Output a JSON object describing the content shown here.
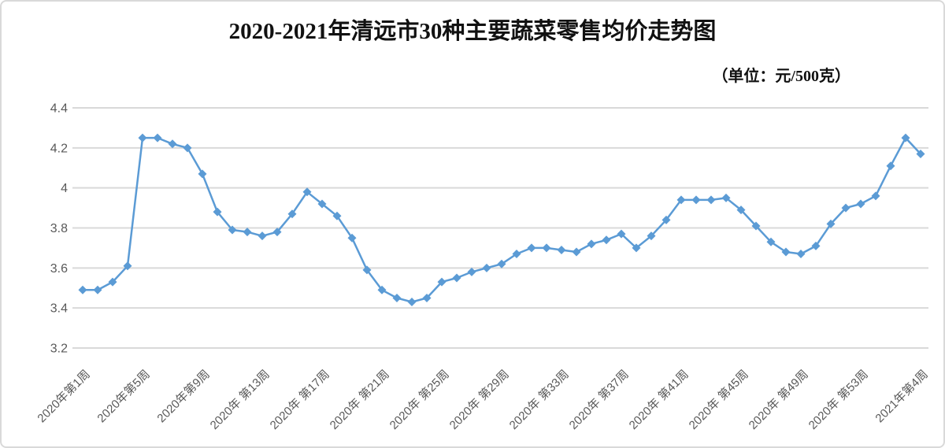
{
  "header": {
    "title": "2020-2021年清远市30种主要蔬菜零售均价走势图",
    "unit_label": "（单位：元/500克）"
  },
  "colors": {
    "line": "#5b9bd5",
    "marker": "#5b9bd5",
    "grid": "#d9d9d9",
    "axis_text": "#595959",
    "title_text": "#111111",
    "chart_border": "#d9d9d9",
    "background": "#ffffff"
  },
  "chart_data": {
    "type": "line",
    "title": "2020-2021年清远市30种主要蔬菜零售均价走势图",
    "unit": "元/500克",
    "xlabel": "",
    "ylabel": "",
    "ylim": [
      3.2,
      4.4
    ],
    "grid": true,
    "legend": false,
    "marker_shape": "diamond",
    "y_axis": {
      "ticks": [
        {
          "value": 4.4,
          "label": "4.4"
        },
        {
          "value": 4.2,
          "label": "4.2"
        },
        {
          "value": 4.0,
          "label": "4"
        },
        {
          "value": 3.8,
          "label": "3.8"
        },
        {
          "value": 3.6,
          "label": "3.6"
        },
        {
          "value": 3.4,
          "label": "3.4"
        },
        {
          "value": 3.2,
          "label": "3.2"
        }
      ]
    },
    "x_axis": {
      "n_points": 57,
      "tick_labels": [
        {
          "index": 0,
          "label": "2020年第1周"
        },
        {
          "index": 4,
          "label": "2020年第5周"
        },
        {
          "index": 8,
          "label": "2020年第9周"
        },
        {
          "index": 12,
          "label": "2020年 第13周"
        },
        {
          "index": 16,
          "label": "2020年 第17周"
        },
        {
          "index": 20,
          "label": "2020年 第21周"
        },
        {
          "index": 24,
          "label": "2020年 第25周"
        },
        {
          "index": 28,
          "label": "2020年 第29周"
        },
        {
          "index": 32,
          "label": "2020年 第33周"
        },
        {
          "index": 36,
          "label": "2020年 第37周"
        },
        {
          "index": 40,
          "label": "2020年 第41周"
        },
        {
          "index": 44,
          "label": "2020年 第45周"
        },
        {
          "index": 48,
          "label": "2020年 第49周"
        },
        {
          "index": 52,
          "label": "2020年 第53周"
        },
        {
          "index": 56,
          "label": "2021年第4周"
        }
      ]
    },
    "series": [
      {
        "name": "30种主要蔬菜零售均价",
        "values": [
          3.49,
          3.49,
          3.53,
          3.61,
          4.25,
          4.25,
          4.22,
          4.2,
          4.07,
          3.88,
          3.79,
          3.78,
          3.76,
          3.78,
          3.87,
          3.98,
          3.92,
          3.86,
          3.75,
          3.59,
          3.49,
          3.45,
          3.43,
          3.45,
          3.53,
          3.55,
          3.58,
          3.6,
          3.62,
          3.67,
          3.7,
          3.7,
          3.69,
          3.68,
          3.72,
          3.74,
          3.77,
          3.7,
          3.76,
          3.84,
          3.94,
          3.94,
          3.94,
          3.95,
          3.89,
          3.81,
          3.73,
          3.68,
          3.67,
          3.71,
          3.82,
          3.9,
          3.92,
          3.96,
          4.11,
          4.25,
          4.17
        ]
      }
    ]
  }
}
